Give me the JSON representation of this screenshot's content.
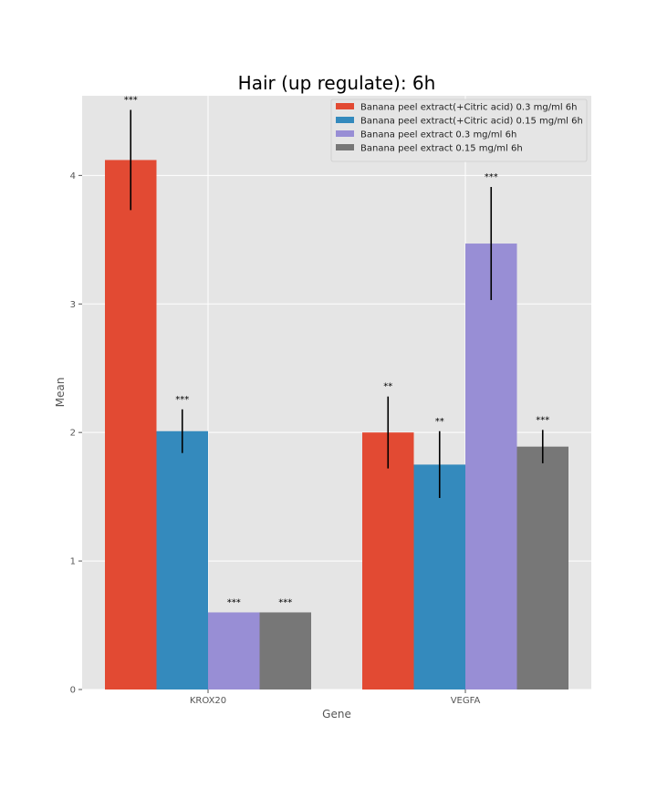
{
  "chart_data": {
    "type": "bar",
    "title": "Hair (up regulate): 6h",
    "xlabel": "Gene",
    "ylabel": "Mean",
    "categories": [
      "KROX20",
      "VEGFA"
    ],
    "ylim": [
      0,
      4.62
    ],
    "yticks": [
      0,
      1,
      2,
      3,
      4
    ],
    "grid": true,
    "legend_position": "top-right",
    "series": [
      {
        "name": "Banana peel extract(+Citric acid) 0.3 mg/ml 6h",
        "color": "#e24a33",
        "values": [
          4.12,
          2.0
        ],
        "errors": [
          0.39,
          0.28
        ],
        "significance": [
          "***",
          "**"
        ]
      },
      {
        "name": "Banana peel extract(+Citric acid) 0.15 mg/ml 6h",
        "color": "#348abd",
        "values": [
          2.01,
          1.75
        ],
        "errors": [
          0.17,
          0.26
        ],
        "significance": [
          "***",
          "**"
        ]
      },
      {
        "name": "Banana peel extract 0.3 mg/ml 6h",
        "color": "#988ed5",
        "values": [
          0.6,
          3.47
        ],
        "errors": [
          0.0,
          0.44
        ],
        "significance": [
          "***",
          "***"
        ]
      },
      {
        "name": "Banana peel extract 0.15 mg/ml 6h",
        "color": "#777777",
        "values": [
          0.6,
          1.89
        ],
        "errors": [
          0.0,
          0.13
        ],
        "significance": [
          "***",
          "***"
        ]
      }
    ]
  }
}
